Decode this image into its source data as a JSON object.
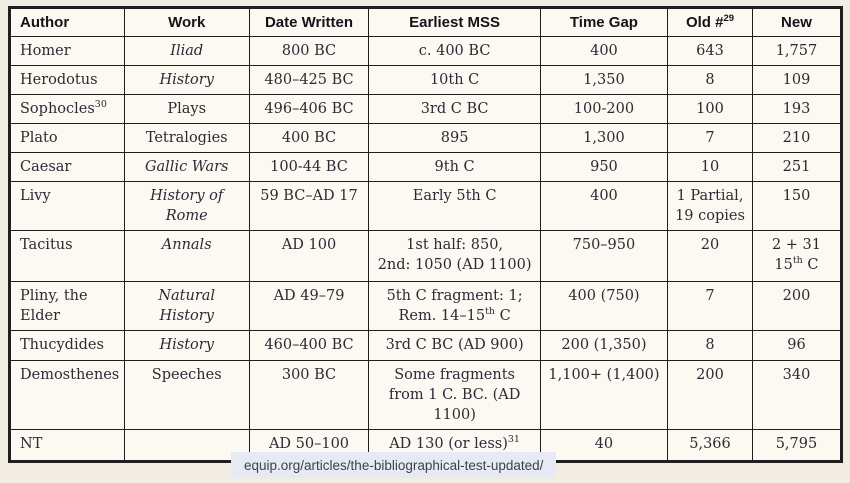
{
  "page": {
    "caption": "equip.org/articles/the-bibliographical-test-updated/"
  },
  "colors": {
    "page_bg": "#f1ede2",
    "cell_bg": "#fbf9f2",
    "border": "#1e1e1e",
    "text": "#2b2b33",
    "caption_bg": "#e7eaf4",
    "caption_text": "#3d4249"
  },
  "table": {
    "columns": [
      {
        "key": "author",
        "label": "Author"
      },
      {
        "key": "work",
        "label": "Work"
      },
      {
        "key": "date",
        "label": "Date Written"
      },
      {
        "key": "mss",
        "label": "Earliest MSS"
      },
      {
        "key": "gap",
        "label": "Time Gap"
      },
      {
        "key": "old",
        "label": "Old #^{29}"
      },
      {
        "key": "new",
        "label": "New"
      }
    ],
    "rows": [
      {
        "author": "Homer",
        "work": "Iliad",
        "work_italic": true,
        "date": "800 BC",
        "mss": "c. 400 BC",
        "gap": "400",
        "old": "643",
        "new": "1,757"
      },
      {
        "author": "Herodotus",
        "work": "History",
        "work_italic": true,
        "date": "480–425 BC",
        "mss": "10th C",
        "gap": "1,350",
        "old": "8",
        "new": "109"
      },
      {
        "author": "Sophocles^{30}",
        "work": "Plays",
        "work_italic": false,
        "date": "496–406 BC",
        "mss": "3rd C BC",
        "gap": "100-200",
        "old": "100",
        "new": "193"
      },
      {
        "author": "Plato",
        "work": "Tetralogies",
        "work_italic": false,
        "date": "400 BC",
        "mss": "895",
        "gap": "1,300",
        "old": "7",
        "new": "210"
      },
      {
        "author": "Caesar",
        "work": "Gallic Wars",
        "work_italic": true,
        "date": "100-44 BC",
        "mss": "9th C",
        "gap": "950",
        "old": "10",
        "new": "251"
      },
      {
        "author": "Livy",
        "work": "History of Rome",
        "work_italic": true,
        "date": "59 BC–AD 17",
        "mss": "Early 5th C",
        "gap": "400",
        "old": "1 Partial,\n19 copies",
        "new": "150"
      },
      {
        "author": "Tacitus",
        "work": "Annals",
        "work_italic": true,
        "date": "AD 100",
        "mss": "1st half: 850,\n2nd: 1050 (AD 1100)",
        "gap": "750–950",
        "old": "20",
        "new": "2 + 31 15^{th} C"
      },
      {
        "author": "Pliny, the Elder",
        "work": "Natural History",
        "work_italic": true,
        "date": "AD 49–79",
        "mss": "5th C fragment: 1;\nRem. 14–15^{th} C",
        "gap": "400 (750)",
        "old": "7",
        "new": "200"
      },
      {
        "author": "Thucydides",
        "work": "History",
        "work_italic": true,
        "date": "460–400 BC",
        "mss": "3rd C BC (AD 900)",
        "gap": "200 (1,350)",
        "old": "8",
        "new": "96"
      },
      {
        "author": "Demosthenes",
        "work": "Speeches",
        "work_italic": false,
        "date": "300 BC",
        "mss": "Some fragments\nfrom 1 C. BC. (AD 1100)",
        "gap": "1,100+ (1,400)",
        "old": "200",
        "new": "340"
      },
      {
        "author": "NT",
        "work": "",
        "work_italic": false,
        "date": "AD 50–100",
        "mss": "AD 130 (or less)^{31}",
        "gap": "40",
        "old": "5,366",
        "new": "5,795"
      }
    ]
  }
}
